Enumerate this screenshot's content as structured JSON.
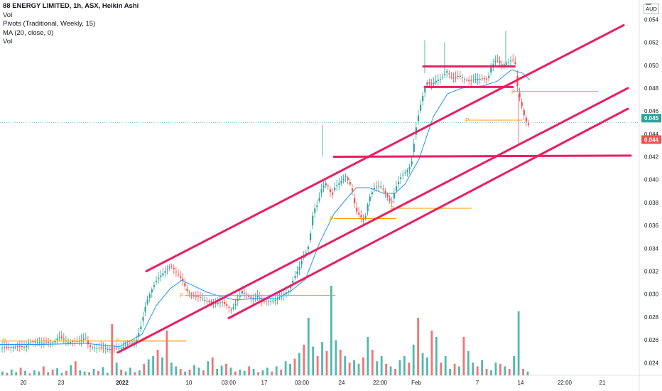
{
  "legend": {
    "title": "88 ENERGY LIMITED, 1h, ASX, Heikin Ashi",
    "line2": "Vol",
    "line3": "Pivots (Traditional, Weekly, 15)",
    "line4": "MA (20, close, 0)",
    "line5": "Vol"
  },
  "currency": "AUD",
  "colors": {
    "up": "#26a69a",
    "down": "#ef5350",
    "trendline": "#e91e63",
    "ma": "#2196f3",
    "pivot": "#ff9800",
    "vol_up": "#26a69a",
    "vol_down": "#ef5350"
  },
  "chart_data": {
    "type": "candlestick",
    "x_tick_labels": [
      "20",
      "23",
      "2022",
      "10",
      "03:00",
      "17",
      "03:00",
      "24",
      "22:00",
      "Feb",
      "7",
      "14",
      "22:00",
      "21"
    ],
    "y_ticks": [
      "0.054",
      "0.052",
      "0.050",
      "0.048",
      "0.046",
      "0.044",
      "0.042",
      "0.040",
      "0.038",
      "0.036",
      "0.034",
      "0.032",
      "0.030",
      "0.028",
      "0.026",
      "0.024"
    ],
    "y_range": [
      0.0229,
      0.0557
    ],
    "price_labels": [
      {
        "value": "0.045",
        "color": "#26a69a"
      },
      {
        "value": "0.044",
        "color": "#ef5350"
      }
    ],
    "pivot_label": "P",
    "price_path": [
      [
        0,
        0.0253
      ],
      [
        20,
        0.0254
      ],
      [
        35,
        0.0254
      ],
      [
        40,
        0.0258
      ],
      [
        55,
        0.0258
      ],
      [
        60,
        0.0257
      ],
      [
        75,
        0.0258
      ],
      [
        82,
        0.0263
      ],
      [
        95,
        0.0258
      ],
      [
        110,
        0.0259
      ],
      [
        120,
        0.0262
      ],
      [
        124,
        0.0254
      ],
      [
        135,
        0.0253
      ],
      [
        155,
        0.0252
      ],
      [
        170,
        0.0253
      ],
      [
        180,
        0.0257
      ],
      [
        190,
        0.0258
      ],
      [
        198,
        0.0273
      ],
      [
        205,
        0.0293
      ],
      [
        212,
        0.0303
      ],
      [
        220,
        0.0313
      ],
      [
        228,
        0.0318
      ],
      [
        236,
        0.0323
      ],
      [
        240,
        0.0325
      ],
      [
        248,
        0.0318
      ],
      [
        255,
        0.0313
      ],
      [
        262,
        0.0303
      ],
      [
        272,
        0.0298
      ],
      [
        282,
        0.0297
      ],
      [
        292,
        0.0293
      ],
      [
        300,
        0.0292
      ],
      [
        312,
        0.0293
      ],
      [
        318,
        0.029
      ],
      [
        325,
        0.0286
      ],
      [
        332,
        0.0293
      ],
      [
        340,
        0.0303
      ],
      [
        348,
        0.0298
      ],
      [
        356,
        0.0295
      ],
      [
        362,
        0.0299
      ],
      [
        368,
        0.0293
      ],
      [
        378,
        0.0294
      ],
      [
        390,
        0.0295
      ],
      [
        398,
        0.03
      ],
      [
        406,
        0.0303
      ],
      [
        412,
        0.0313
      ],
      [
        420,
        0.0323
      ],
      [
        426,
        0.0333
      ],
      [
        432,
        0.0338
      ],
      [
        436,
        0.0353
      ],
      [
        440,
        0.0373
      ],
      [
        446,
        0.0378
      ],
      [
        452,
        0.0393
      ],
      [
        458,
        0.0397
      ],
      [
        462,
        0.0393
      ],
      [
        466,
        0.0385
      ],
      [
        470,
        0.0393
      ],
      [
        478,
        0.0398
      ],
      [
        486,
        0.0403
      ],
      [
        494,
        0.0393
      ],
      [
        500,
        0.0373
      ],
      [
        506,
        0.0368
      ],
      [
        512,
        0.0363
      ],
      [
        518,
        0.0383
      ],
      [
        526,
        0.0393
      ],
      [
        534,
        0.0395
      ],
      [
        540,
        0.039
      ],
      [
        546,
        0.0383
      ],
      [
        550,
        0.0379
      ],
      [
        556,
        0.0393
      ],
      [
        564,
        0.0403
      ],
      [
        572,
        0.0408
      ],
      [
        578,
        0.0413
      ],
      [
        584,
        0.0443
      ],
      [
        590,
        0.0463
      ],
      [
        596,
        0.0478
      ],
      [
        600,
        0.0485
      ],
      [
        606,
        0.0483
      ],
      [
        614,
        0.0487
      ],
      [
        620,
        0.0488
      ],
      [
        628,
        0.0495
      ],
      [
        636,
        0.0488
      ],
      [
        646,
        0.0491
      ],
      [
        652,
        0.0488
      ],
      [
        660,
        0.0486
      ],
      [
        668,
        0.0488
      ],
      [
        678,
        0.0488
      ],
      [
        686,
        0.0488
      ],
      [
        690,
        0.0498
      ],
      [
        698,
        0.0505
      ],
      [
        706,
        0.05
      ],
      [
        714,
        0.0502
      ],
      [
        720,
        0.0505
      ],
      [
        724,
        0.0503
      ],
      [
        728,
        0.0478
      ],
      [
        734,
        0.0463
      ],
      [
        738,
        0.0453
      ],
      [
        742,
        0.0448
      ],
      [
        746,
        0.0447
      ]
    ],
    "ma_path": [
      [
        0,
        0.0256
      ],
      [
        60,
        0.0256
      ],
      [
        120,
        0.0257
      ],
      [
        168,
        0.0254
      ],
      [
        200,
        0.0265
      ],
      [
        220,
        0.029
      ],
      [
        240,
        0.0305
      ],
      [
        256,
        0.0312
      ],
      [
        270,
        0.0308
      ],
      [
        290,
        0.0302
      ],
      [
        310,
        0.0298
      ],
      [
        330,
        0.0295
      ],
      [
        360,
        0.0296
      ],
      [
        390,
        0.0296
      ],
      [
        410,
        0.0303
      ],
      [
        430,
        0.0313
      ],
      [
        450,
        0.0345
      ],
      [
        470,
        0.037
      ],
      [
        490,
        0.0385
      ],
      [
        502,
        0.0393
      ],
      [
        520,
        0.0393
      ],
      [
        540,
        0.0388
      ],
      [
        556,
        0.0388
      ],
      [
        570,
        0.0396
      ],
      [
        590,
        0.0418
      ],
      [
        610,
        0.0455
      ],
      [
        630,
        0.0475
      ],
      [
        650,
        0.048
      ],
      [
        680,
        0.0482
      ],
      [
        700,
        0.0486
      ],
      [
        720,
        0.0496
      ],
      [
        736,
        0.0493
      ],
      [
        746,
        0.0487
      ]
    ],
    "trend_lines": [
      {
        "x1": 206,
        "y1": 0.032,
        "x2": 878,
        "y2": 0.0535,
        "width": 3
      },
      {
        "x1": 166,
        "y1": 0.0249,
        "x2": 884,
        "y2": 0.048,
        "width": 3
      },
      {
        "x1": 322,
        "y1": 0.0279,
        "x2": 884,
        "y2": 0.0462,
        "width": 3
      },
      {
        "x1": 596,
        "y1": 0.0499,
        "x2": 724,
        "y2": 0.0499,
        "width": 3
      },
      {
        "x1": 598,
        "y1": 0.0481,
        "x2": 722,
        "y2": 0.0481,
        "width": 3
      },
      {
        "x1": 470,
        "y1": 0.042,
        "x2": 888,
        "y2": 0.0421,
        "width": 3
      }
    ],
    "pivots": [
      {
        "x1": 0,
        "x2": 262,
        "y": 0.0259,
        "label_x": 3
      },
      {
        "x1": 160,
        "x2": 262,
        "y": 0.0259,
        "label_x": 163
      },
      {
        "x1": 260,
        "x2": 472,
        "y": 0.0299,
        "label_x": 253
      },
      {
        "x1": 470,
        "x2": 558,
        "y": 0.0366,
        "label_x": 464
      },
      {
        "x1": 556,
        "x2": 664,
        "y": 0.0375,
        "label_x": 550
      },
      {
        "x1": 722,
        "x2": 842,
        "y": 0.0477,
        "label_x": 720
      },
      {
        "x1": 660,
        "x2": 735,
        "y": 0.0452,
        "label_x": 655
      }
    ],
    "current_price": 0.045,
    "volume_bars_heights": [
      6,
      4,
      9,
      5,
      12,
      7,
      3,
      8,
      6,
      14,
      5,
      9,
      11,
      4,
      7,
      16,
      22,
      8,
      6,
      5,
      10,
      7,
      13,
      4,
      80,
      20,
      9,
      6,
      12,
      5,
      8,
      18,
      25,
      30,
      40,
      28,
      70,
      20,
      14,
      10,
      6,
      9,
      16,
      12,
      8,
      22,
      28,
      10,
      15,
      18,
      12,
      6,
      9,
      7,
      14,
      10,
      5,
      8,
      12,
      6,
      14,
      9,
      22,
      18,
      26,
      35,
      48,
      90,
      45,
      30,
      52,
      38,
      140,
      55,
      40,
      30,
      20,
      24,
      18,
      28,
      60,
      40,
      22,
      30,
      18,
      14,
      10,
      24,
      30,
      20,
      48,
      90,
      35,
      28,
      70,
      60,
      20,
      30,
      10,
      18,
      14,
      60,
      38,
      20,
      14,
      24,
      10,
      8,
      20,
      18,
      14,
      10,
      30,
      100,
      10,
      6
    ]
  }
}
